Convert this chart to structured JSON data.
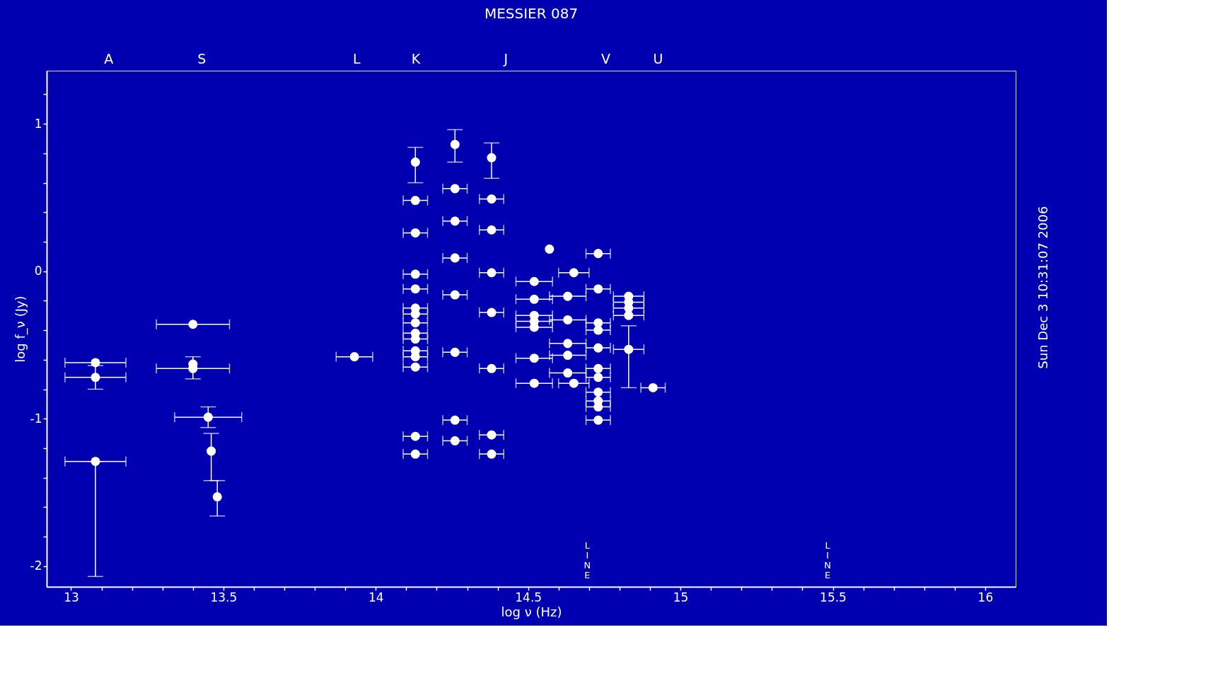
{
  "chart_data": {
    "type": "scatter",
    "title": "MESSIER 087",
    "xlabel": "log ν (Hz)",
    "ylabel": "log f_ν (Jy)",
    "xlim": [
      12.92,
      16.1
    ],
    "ylim": [
      -2.14,
      1.36
    ],
    "xticks": [
      13,
      {
        "value": 13.1,
        "label": null
      },
      {
        "value": 13.2,
        "label": null
      },
      {
        "value": 13.3,
        "label": null
      },
      {
        "value": 13.4,
        "label": null
      },
      13.5,
      {
        "value": 13.6,
        "label": null
      },
      {
        "value": 13.7,
        "label": null
      },
      {
        "value": 13.8,
        "label": null
      },
      {
        "value": 13.9,
        "label": null
      },
      14,
      {
        "value": 14.1,
        "label": null
      },
      {
        "value": 14.2,
        "label": null
      },
      {
        "value": 14.3,
        "label": null
      },
      {
        "value": 14.4,
        "label": null
      },
      14.5,
      {
        "value": 14.6,
        "label": null
      },
      {
        "value": 14.7,
        "label": null
      },
      {
        "value": 14.8,
        "label": null
      },
      {
        "value": 14.9,
        "label": null
      },
      15,
      {
        "value": 15.1,
        "label": null
      },
      {
        "value": 15.2,
        "label": null
      },
      {
        "value": 15.3,
        "label": null
      },
      {
        "value": 15.4,
        "label": null
      },
      15.5,
      {
        "value": 15.6,
        "label": null
      },
      {
        "value": 15.7,
        "label": null
      },
      {
        "value": 15.8,
        "label": null
      },
      {
        "value": 15.9,
        "label": null
      },
      16
    ],
    "yticks": [
      -2,
      {
        "value": -1.8,
        "label": null
      },
      {
        "value": -1.6,
        "label": null
      },
      {
        "value": -1.4,
        "label": null
      },
      {
        "value": -1.2,
        "label": null
      },
      -1,
      {
        "value": -0.8,
        "label": null
      },
      {
        "value": -0.6,
        "label": null
      },
      {
        "value": -0.4,
        "label": null
      },
      {
        "value": -0.2,
        "label": null
      },
      0,
      {
        "value": 0.2,
        "label": null
      },
      {
        "value": 0.4,
        "label": null
      },
      {
        "value": 0.6,
        "label": null
      },
      {
        "value": 0.8,
        "label": null
      },
      1,
      {
        "value": 1.2,
        "label": null
      }
    ],
    "grid": false,
    "marker": "circle",
    "series": [
      {
        "color": "#ffffff",
        "x": [
          13.08,
          13.08,
          13.08,
          13.4,
          13.4,
          13.4,
          13.45,
          13.46,
          13.48,
          13.93,
          14.13,
          14.13,
          14.13,
          14.13,
          14.13,
          14.13,
          14.13,
          14.13,
          14.13,
          14.13,
          14.13,
          14.13,
          14.13,
          14.13,
          14.13,
          14.26,
          14.26,
          14.26,
          14.26,
          14.26,
          14.26,
          14.26,
          14.26,
          14.38,
          14.38,
          14.38,
          14.38,
          14.38,
          14.38,
          14.38,
          14.38,
          14.52,
          14.52,
          14.52,
          14.52,
          14.52,
          14.52,
          14.52,
          14.57,
          14.63,
          14.63,
          14.63,
          14.63,
          14.63,
          14.65,
          14.65,
          14.73,
          14.73,
          14.73,
          14.73,
          14.73,
          14.73,
          14.73,
          14.73,
          14.73,
          14.73,
          14.73,
          14.83,
          14.83,
          14.83,
          14.83,
          14.83,
          14.91
        ],
        "values": [
          -0.62,
          -0.72,
          -1.29,
          -0.36,
          -0.63,
          -0.66,
          -0.99,
          -1.22,
          -1.53,
          -0.58,
          0.74,
          0.48,
          0.26,
          -0.02,
          -0.12,
          -0.25,
          -0.29,
          -0.35,
          -0.42,
          -0.46,
          -0.54,
          -0.58,
          -0.65,
          -1.12,
          -1.24,
          0.86,
          0.56,
          0.34,
          0.09,
          -0.16,
          -0.55,
          -1.01,
          -1.15,
          0.77,
          0.49,
          0.28,
          -0.01,
          -0.28,
          -0.66,
          -1.11,
          -1.24,
          -0.07,
          -0.19,
          -0.3,
          -0.34,
          -0.38,
          -0.59,
          -0.76,
          0.15,
          -0.17,
          -0.33,
          -0.49,
          -0.57,
          -0.69,
          -0.01,
          -0.76,
          0.12,
          -0.12,
          -0.35,
          -0.4,
          -0.52,
          -0.66,
          -0.72,
          -0.82,
          -0.88,
          -0.92,
          -1.01,
          -0.17,
          -0.21,
          -0.25,
          -0.3,
          -0.53,
          -0.79
        ],
        "errors": [
          null,
          0.08,
          [
            -2.07,
            -1.29
          ],
          null,
          null,
          [
            -0.73,
            -0.58
          ],
          0.07,
          [
            -1.42,
            -1.1
          ],
          [
            -1.66,
            -1.42
          ],
          null,
          [
            0.6,
            0.84
          ],
          null,
          null,
          null,
          null,
          null,
          null,
          null,
          null,
          null,
          null,
          null,
          null,
          null,
          null,
          [
            0.74,
            0.96
          ],
          null,
          null,
          null,
          null,
          null,
          null,
          null,
          [
            0.63,
            0.87
          ],
          null,
          null,
          null,
          null,
          null,
          null,
          null,
          null,
          null,
          null,
          null,
          null,
          null,
          null,
          null,
          null,
          null,
          null,
          null,
          null,
          null,
          null,
          null,
          null,
          null,
          null,
          null,
          null,
          null,
          null,
          null,
          null,
          null,
          null,
          null,
          null,
          null,
          [
            -0.79,
            -0.37
          ],
          null
        ],
        "xerrors": [
          0.1,
          0.1,
          0.1,
          0.12,
          null,
          0.12,
          0.11,
          null,
          null,
          0.06,
          null,
          0.04,
          0.04,
          0.04,
          0.04,
          0.04,
          0.04,
          0.04,
          0.04,
          0.04,
          0.04,
          0.04,
          0.04,
          0.04,
          0.04,
          null,
          0.04,
          0.04,
          0.04,
          0.04,
          0.04,
          0.04,
          0.04,
          null,
          0.04,
          0.04,
          0.04,
          0.04,
          0.04,
          0.04,
          0.04,
          0.06,
          0.06,
          0.06,
          0.06,
          0.06,
          0.06,
          0.06,
          null,
          0.06,
          0.06,
          0.06,
          0.06,
          0.06,
          0.05,
          0.05,
          0.04,
          0.04,
          0.04,
          0.04,
          0.04,
          0.04,
          0.04,
          0.04,
          0.04,
          0.04,
          0.04,
          0.05,
          0.05,
          0.05,
          0.05,
          0.05,
          0.04
        ]
      }
    ],
    "annotations": [
      "A",
      "S",
      "L",
      "K",
      "J",
      "V",
      "U",
      "LINE",
      "LINE",
      "Sun Dec  3 10:31:07 2006"
    ]
  }
}
